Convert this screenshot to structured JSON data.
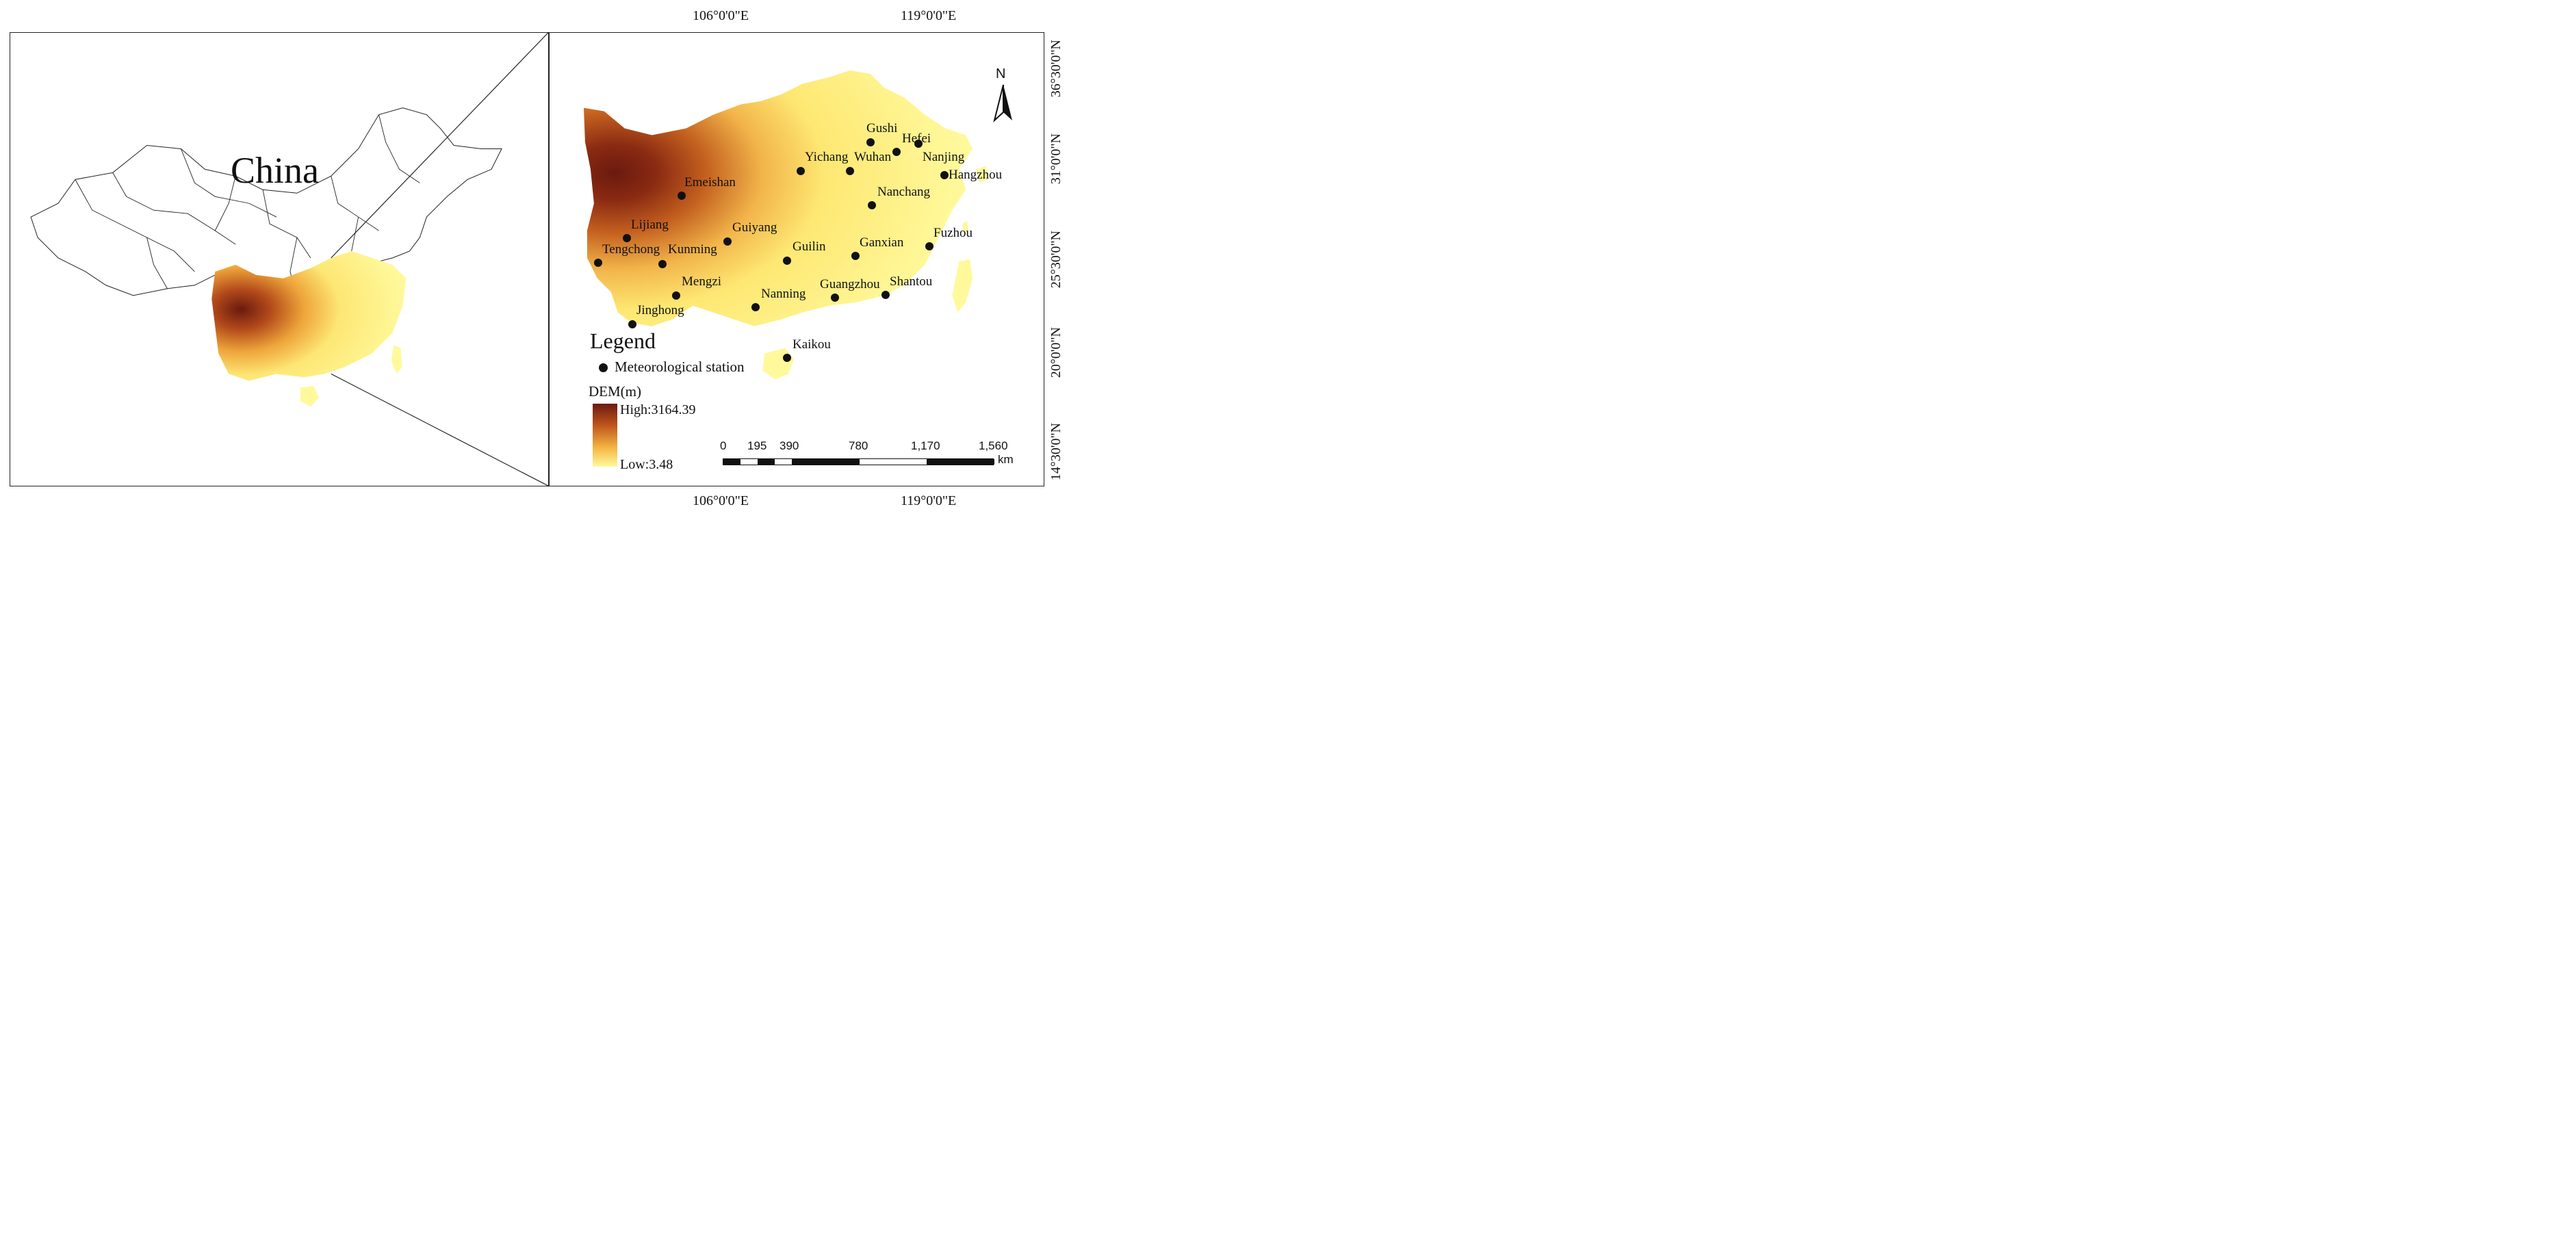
{
  "left_map": {
    "country_label": "China"
  },
  "graticule": {
    "top": [
      "106°0'0\"E",
      "119°0'0\"E"
    ],
    "bottom": [
      "106°0'0\"E",
      "119°0'0\"E"
    ],
    "right": [
      "36°30'0\"N",
      "31°0'0\"N",
      "25°30'0\"N",
      "20°0'0\"N",
      "14°30'0\"N"
    ]
  },
  "stations": [
    {
      "name": "Gushi"
    },
    {
      "name": "Hefei"
    },
    {
      "name": "Yichang"
    },
    {
      "name": "Wuhan"
    },
    {
      "name": "Nanjing"
    },
    {
      "name": "Hangzhou"
    },
    {
      "name": "Emeishan"
    },
    {
      "name": "Nanchang"
    },
    {
      "name": "Lijiang"
    },
    {
      "name": "Guiyang"
    },
    {
      "name": "Fuzhou"
    },
    {
      "name": "Tengchong"
    },
    {
      "name": "Kunming"
    },
    {
      "name": "Guilin"
    },
    {
      "name": "Ganxian"
    },
    {
      "name": "Mengzi"
    },
    {
      "name": "Nanning"
    },
    {
      "name": "Guangzhou"
    },
    {
      "name": "Shantou"
    },
    {
      "name": "Jinghong"
    },
    {
      "name": "Kaikou"
    }
  ],
  "legend": {
    "title": "Legend",
    "station_label": "Meteorological station",
    "dem_title": "DEM(m)",
    "dem_high": "High:3164.39",
    "dem_low": "Low:3.48",
    "dem_colors": {
      "high": "#6b1a0f",
      "mid": "#f4b642",
      "low": "#fff99c"
    }
  },
  "scale_bar": {
    "ticks": [
      "0",
      "195",
      "390",
      "780",
      "1,170",
      "1,560"
    ],
    "unit": "km"
  },
  "north_arrow": {
    "label": "N",
    "icon": "north-arrow-icon"
  }
}
